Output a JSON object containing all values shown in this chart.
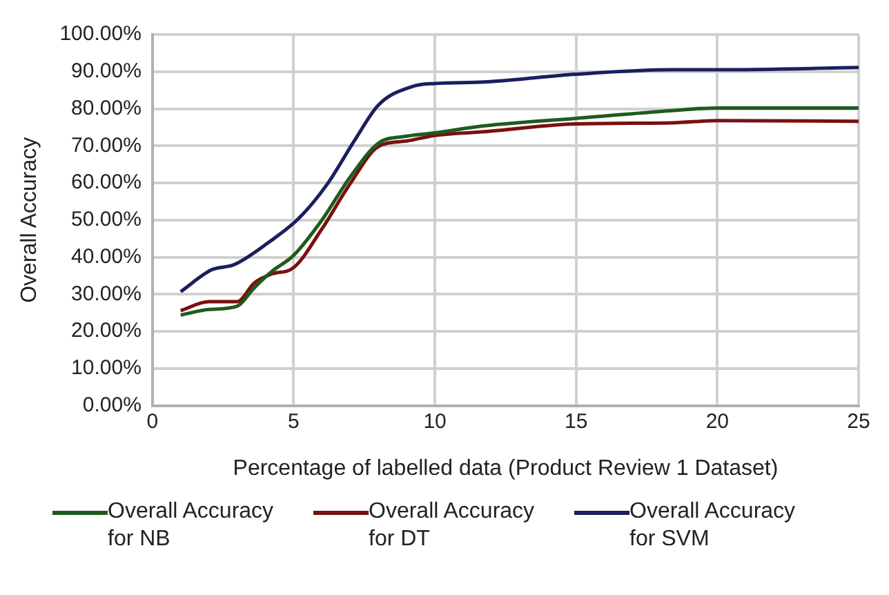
{
  "chart_data": {
    "type": "line",
    "xlabel": "Percentage of labelled data (Product Review 1 Dataset)",
    "ylabel": "Overall Accuracy",
    "xlim": [
      0,
      25
    ],
    "xticks": [
      0,
      5,
      10,
      15,
      20,
      25
    ],
    "ylim": [
      0,
      100
    ],
    "yticks": [
      {
        "value": 0,
        "label": "0.00%"
      },
      {
        "value": 10,
        "label": "10.00%"
      },
      {
        "value": 20,
        "label": "20.00%"
      },
      {
        "value": 30,
        "label": "30.00%"
      },
      {
        "value": 40,
        "label": "40.00%"
      },
      {
        "value": 50,
        "label": "50.00%"
      },
      {
        "value": 60,
        "label": "60.00%"
      },
      {
        "value": 70,
        "label": "70.00%"
      },
      {
        "value": 80,
        "label": "80.00%"
      },
      {
        "value": 90,
        "label": "90.00%"
      },
      {
        "value": 100,
        "label": "100.00%"
      }
    ],
    "grid": true,
    "legend": "bottom",
    "marker": "none",
    "line_style": "solid",
    "series": [
      {
        "name": "Overall Accuracy for NB",
        "color": "#1e5c1e",
        "x": [
          1,
          2,
          3,
          3.6,
          4.2,
          5,
          6,
          7,
          8,
          9,
          10,
          11.75,
          15,
          18.4,
          20,
          25
        ],
        "values": [
          24.4,
          25.9,
          26.8,
          31.7,
          36,
          40.5,
          50,
          61.6,
          70.7,
          72.6,
          73.5,
          75.4,
          77.4,
          79.5,
          80.2,
          80.2
        ]
      },
      {
        "name": "Overall Accuracy for DT",
        "color": "#7a1010",
        "x": [
          1,
          2,
          3,
          3.6,
          4.2,
          5,
          6,
          7,
          8,
          9,
          10,
          11.75,
          15,
          18.4,
          20,
          25
        ],
        "values": [
          25.6,
          28,
          28,
          33,
          35.4,
          37.2,
          47.6,
          59.8,
          69.8,
          71.3,
          72.8,
          73.8,
          75.9,
          76.2,
          76.8,
          76.6
        ]
      },
      {
        "name": "Overall Accuracy for SVM",
        "color": "#1a1f5e",
        "x": [
          1,
          2.1,
          2.9,
          4.1,
          5.2,
          6.2,
          7.2,
          8,
          9.2,
          10,
          11.75,
          15,
          18.4,
          20,
          25
        ],
        "values": [
          30.7,
          36.6,
          38,
          43.9,
          50.6,
          59.8,
          72,
          81,
          86,
          86.8,
          87.2,
          89.3,
          90.5,
          90.5,
          91.1
        ]
      }
    ]
  }
}
